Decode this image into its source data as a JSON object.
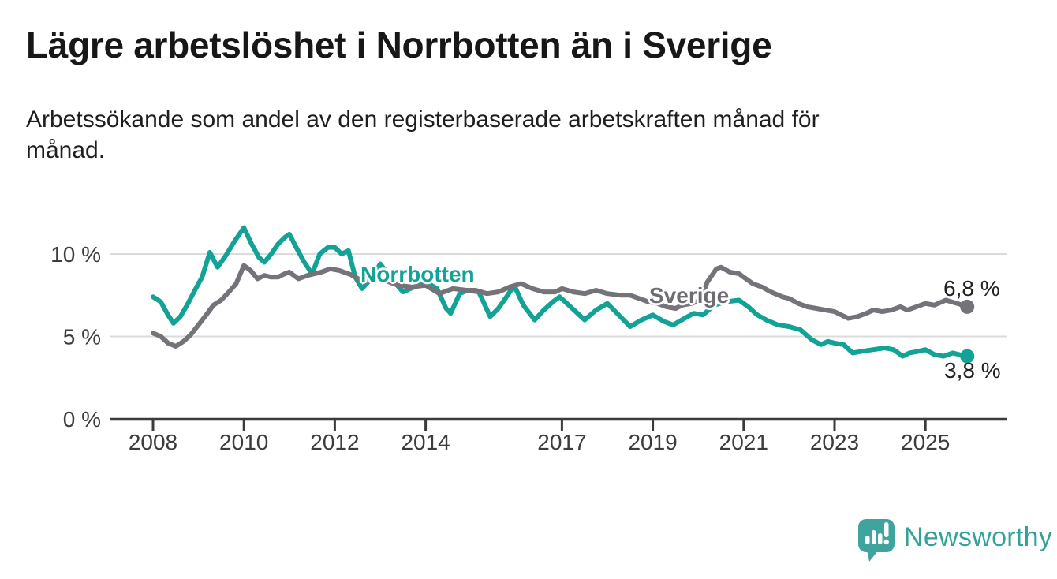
{
  "title": "Lägre arbetslöshet i Norrbotten än i Sverige",
  "subtitle_lines": [
    "Arbetssökande som andel av den registerbaserade arbetskraften månad för",
    "månad."
  ],
  "colors": {
    "norrbotten": "#12A296",
    "sverige": "#757279",
    "gridline": "#DBDBDB",
    "axis": "#3B3B3B",
    "tick_text": "#3C3C3C",
    "end_label_text": "#222222",
    "logo_teal": "#3EA49D",
    "background": "#FFFFFF"
  },
  "footer": {
    "brand": "Newsworthy"
  },
  "chart_data": {
    "type": "line",
    "title": "Lägre arbetslöshet i Norrbotten än i Sverige",
    "unit": "%",
    "grid": "horizontal-only",
    "legend": "inline-labels-on-lines",
    "x_axis": {
      "min": 2007.1,
      "max": 2026.8,
      "ticks": [
        2008,
        2010,
        2012,
        2014,
        2017,
        2019,
        2021,
        2023,
        2025
      ]
    },
    "y_axis": {
      "min": 0,
      "max": 11.8,
      "ticks": [
        {
          "value": 0,
          "label": "0 %"
        },
        {
          "value": 5,
          "label": "5 %"
        },
        {
          "value": 10,
          "label": "10 %"
        }
      ]
    },
    "series": [
      {
        "name": "Norrbotten",
        "color": "#12A296",
        "end_label": "3,8 %",
        "end_value": 3.8,
        "points": [
          [
            2008.0,
            7.4
          ],
          [
            2008.17,
            7.1
          ],
          [
            2008.33,
            6.3
          ],
          [
            2008.45,
            5.8
          ],
          [
            2008.6,
            6.2
          ],
          [
            2008.75,
            6.9
          ],
          [
            2008.92,
            7.8
          ],
          [
            2009.08,
            8.6
          ],
          [
            2009.25,
            10.1
          ],
          [
            2009.42,
            9.2
          ],
          [
            2009.6,
            9.9
          ],
          [
            2009.8,
            10.8
          ],
          [
            2010.0,
            11.6
          ],
          [
            2010.17,
            10.6
          ],
          [
            2010.33,
            9.8
          ],
          [
            2010.45,
            9.5
          ],
          [
            2010.6,
            10.0
          ],
          [
            2010.75,
            10.6
          ],
          [
            2010.9,
            11.0
          ],
          [
            2011.0,
            11.2
          ],
          [
            2011.17,
            10.3
          ],
          [
            2011.33,
            9.5
          ],
          [
            2011.5,
            8.8
          ],
          [
            2011.67,
            10.0
          ],
          [
            2011.85,
            10.4
          ],
          [
            2012.0,
            10.4
          ],
          [
            2012.15,
            10.0
          ],
          [
            2012.3,
            10.2
          ],
          [
            2012.45,
            8.6
          ],
          [
            2012.6,
            7.9
          ],
          [
            2012.8,
            8.5
          ],
          [
            2013.0,
            9.4
          ],
          [
            2013.25,
            8.5
          ],
          [
            2013.5,
            7.7
          ],
          [
            2013.75,
            8.0
          ],
          [
            2014.0,
            8.3
          ],
          [
            2014.25,
            7.9
          ],
          [
            2014.45,
            6.7
          ],
          [
            2014.55,
            6.4
          ],
          [
            2014.75,
            7.6
          ],
          [
            2014.92,
            7.8
          ],
          [
            2015.17,
            7.7
          ],
          [
            2015.42,
            6.2
          ],
          [
            2015.6,
            6.7
          ],
          [
            2015.78,
            7.4
          ],
          [
            2015.95,
            8.1
          ],
          [
            2016.15,
            6.9
          ],
          [
            2016.4,
            6.0
          ],
          [
            2016.6,
            6.6
          ],
          [
            2016.8,
            7.1
          ],
          [
            2016.95,
            7.4
          ],
          [
            2017.15,
            6.9
          ],
          [
            2017.5,
            6.0
          ],
          [
            2017.75,
            6.6
          ],
          [
            2018.0,
            7.0
          ],
          [
            2018.25,
            6.3
          ],
          [
            2018.5,
            5.6
          ],
          [
            2018.75,
            6.0
          ],
          [
            2019.0,
            6.3
          ],
          [
            2019.25,
            5.9
          ],
          [
            2019.45,
            5.7
          ],
          [
            2019.7,
            6.1
          ],
          [
            2019.9,
            6.4
          ],
          [
            2020.1,
            6.3
          ],
          [
            2020.35,
            6.9
          ],
          [
            2020.6,
            7.1
          ],
          [
            2020.9,
            7.2
          ],
          [
            2021.1,
            6.8
          ],
          [
            2021.3,
            6.3
          ],
          [
            2021.5,
            6.0
          ],
          [
            2021.75,
            5.7
          ],
          [
            2022.0,
            5.6
          ],
          [
            2022.25,
            5.4
          ],
          [
            2022.5,
            4.8
          ],
          [
            2022.7,
            4.5
          ],
          [
            2022.85,
            4.7
          ],
          [
            2023.0,
            4.6
          ],
          [
            2023.2,
            4.5
          ],
          [
            2023.4,
            4.0
          ],
          [
            2023.6,
            4.1
          ],
          [
            2023.85,
            4.2
          ],
          [
            2024.1,
            4.3
          ],
          [
            2024.3,
            4.2
          ],
          [
            2024.5,
            3.8
          ],
          [
            2024.65,
            4.0
          ],
          [
            2024.85,
            4.1
          ],
          [
            2025.0,
            4.2
          ],
          [
            2025.2,
            3.9
          ],
          [
            2025.4,
            3.8
          ],
          [
            2025.6,
            4.0
          ],
          [
            2025.75,
            3.9
          ],
          [
            2025.92,
            3.8
          ]
        ]
      },
      {
        "name": "Sverige",
        "color": "#757279",
        "end_label": "6,8 %",
        "end_value": 6.8,
        "points": [
          [
            2008.0,
            5.2
          ],
          [
            2008.17,
            5.0
          ],
          [
            2008.33,
            4.6
          ],
          [
            2008.5,
            4.4
          ],
          [
            2008.67,
            4.7
          ],
          [
            2008.83,
            5.1
          ],
          [
            2009.0,
            5.7
          ],
          [
            2009.17,
            6.3
          ],
          [
            2009.33,
            6.9
          ],
          [
            2009.5,
            7.2
          ],
          [
            2009.67,
            7.7
          ],
          [
            2009.83,
            8.2
          ],
          [
            2010.0,
            9.3
          ],
          [
            2010.15,
            9.0
          ],
          [
            2010.3,
            8.5
          ],
          [
            2010.45,
            8.7
          ],
          [
            2010.6,
            8.6
          ],
          [
            2010.75,
            8.6
          ],
          [
            2010.9,
            8.8
          ],
          [
            2011.0,
            8.9
          ],
          [
            2011.2,
            8.5
          ],
          [
            2011.4,
            8.7
          ],
          [
            2011.7,
            8.9
          ],
          [
            2011.9,
            9.1
          ],
          [
            2012.1,
            9.0
          ],
          [
            2012.35,
            8.75
          ],
          [
            2012.65,
            8.3
          ],
          [
            2013.0,
            8.5
          ],
          [
            2013.4,
            8.1
          ],
          [
            2013.7,
            8.0
          ],
          [
            2014.0,
            8.1
          ],
          [
            2014.3,
            7.6
          ],
          [
            2014.6,
            7.9
          ],
          [
            2014.9,
            7.8
          ],
          [
            2015.1,
            7.8
          ],
          [
            2015.35,
            7.6
          ],
          [
            2015.6,
            7.7
          ],
          [
            2015.85,
            8.0
          ],
          [
            2016.1,
            8.2
          ],
          [
            2016.35,
            7.9
          ],
          [
            2016.6,
            7.7
          ],
          [
            2016.85,
            7.7
          ],
          [
            2017.0,
            7.9
          ],
          [
            2017.25,
            7.7
          ],
          [
            2017.5,
            7.6
          ],
          [
            2017.75,
            7.8
          ],
          [
            2018.0,
            7.6
          ],
          [
            2018.3,
            7.5
          ],
          [
            2018.5,
            7.5
          ],
          [
            2018.7,
            7.3
          ],
          [
            2018.9,
            7.1
          ],
          [
            2019.1,
            7.0
          ],
          [
            2019.3,
            6.8
          ],
          [
            2019.5,
            6.7
          ],
          [
            2019.65,
            6.9
          ],
          [
            2019.85,
            7.0
          ],
          [
            2020.05,
            7.2
          ],
          [
            2020.2,
            8.3
          ],
          [
            2020.4,
            9.1
          ],
          [
            2020.5,
            9.2
          ],
          [
            2020.7,
            8.9
          ],
          [
            2020.9,
            8.8
          ],
          [
            2021.0,
            8.6
          ],
          [
            2021.2,
            8.2
          ],
          [
            2021.4,
            8.0
          ],
          [
            2021.6,
            7.7
          ],
          [
            2021.85,
            7.4
          ],
          [
            2022.0,
            7.3
          ],
          [
            2022.2,
            7.0
          ],
          [
            2022.4,
            6.8
          ],
          [
            2022.6,
            6.7
          ],
          [
            2022.8,
            6.6
          ],
          [
            2023.0,
            6.5
          ],
          [
            2023.15,
            6.3
          ],
          [
            2023.3,
            6.1
          ],
          [
            2023.5,
            6.2
          ],
          [
            2023.7,
            6.4
          ],
          [
            2023.85,
            6.6
          ],
          [
            2024.05,
            6.5
          ],
          [
            2024.25,
            6.6
          ],
          [
            2024.45,
            6.8
          ],
          [
            2024.6,
            6.6
          ],
          [
            2024.8,
            6.8
          ],
          [
            2025.0,
            7.0
          ],
          [
            2025.2,
            6.9
          ],
          [
            2025.45,
            7.2
          ],
          [
            2025.7,
            7.0
          ],
          [
            2025.92,
            6.8
          ]
        ]
      }
    ]
  }
}
